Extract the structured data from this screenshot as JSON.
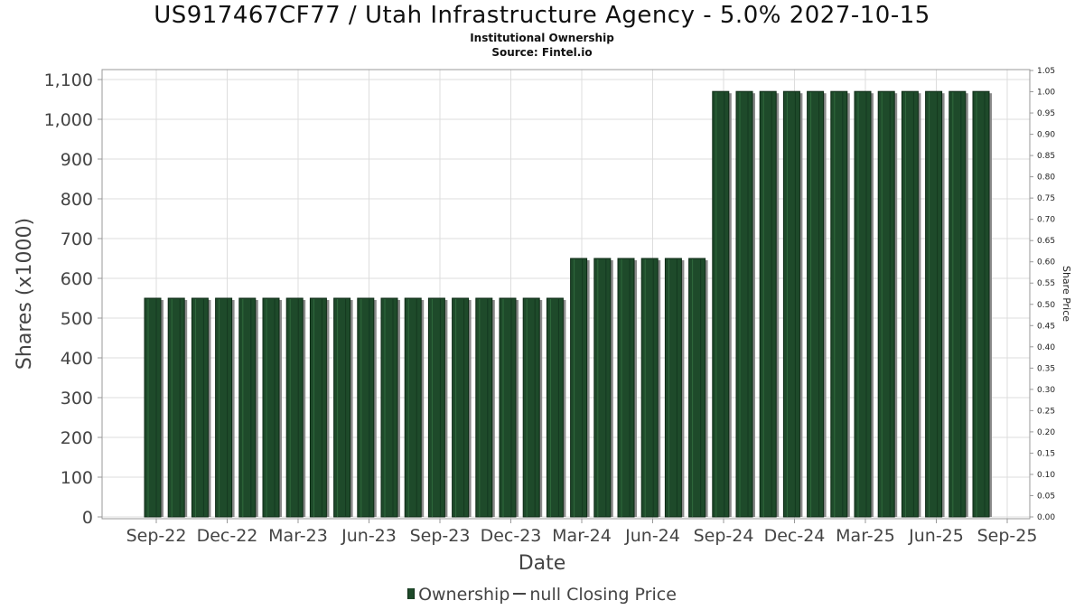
{
  "header": {
    "title": "US917467CF77 / Utah Infrastructure Agency - 5.0% 2027-10-15",
    "subtitle1": "Institutional Ownership",
    "subtitle2": "Source: Fintel.io"
  },
  "legend": {
    "ownership_label": "Ownership",
    "price_label": "null Closing Price"
  },
  "colors": {
    "bar": "#1e4a2a",
    "bar_edge": "#0d2a15",
    "bar_shadow": "#8a8a8a",
    "grid": "#dddddd"
  },
  "chart_data": {
    "type": "bar",
    "xlabel": "Date",
    "ylabel": "Shares (x1000)",
    "y2label": "Share Price",
    "ylim": [
      0,
      1100
    ],
    "y2lim": [
      0,
      1.05
    ],
    "yticks": [
      0,
      100,
      200,
      300,
      400,
      500,
      600,
      700,
      800,
      900,
      1000,
      1100
    ],
    "ytick_labels": [
      "0",
      "100",
      "200",
      "300",
      "400",
      "500",
      "600",
      "700",
      "800",
      "900",
      "1,000",
      "1,100"
    ],
    "y2tick_labels": [
      "0.00",
      "0.05",
      "0.10",
      "0.15",
      "0.20",
      "0.25",
      "0.30",
      "0.35",
      "0.40",
      "0.45",
      "0.50",
      "0.55",
      "0.60",
      "0.65",
      "0.70",
      "0.75",
      "0.80",
      "0.85",
      "0.90",
      "0.95",
      "1.00",
      "1.05"
    ],
    "xtick_labels": [
      "Sep-22",
      "Dec-22",
      "Mar-23",
      "Jun-23",
      "Sep-23",
      "Dec-23",
      "Mar-24",
      "Jun-24",
      "Sep-24",
      "Dec-24",
      "Mar-25",
      "Jun-25",
      "Sep-25"
    ],
    "grid": true,
    "series": [
      {
        "name": "Ownership",
        "values": [
          550,
          550,
          550,
          550,
          550,
          550,
          550,
          550,
          550,
          550,
          550,
          550,
          550,
          550,
          550,
          550,
          550,
          550,
          650,
          650,
          650,
          650,
          650,
          650,
          1070,
          1070,
          1070,
          1070,
          1070,
          1070,
          1070,
          1070,
          1070,
          1070,
          1070,
          1070
        ]
      }
    ]
  }
}
